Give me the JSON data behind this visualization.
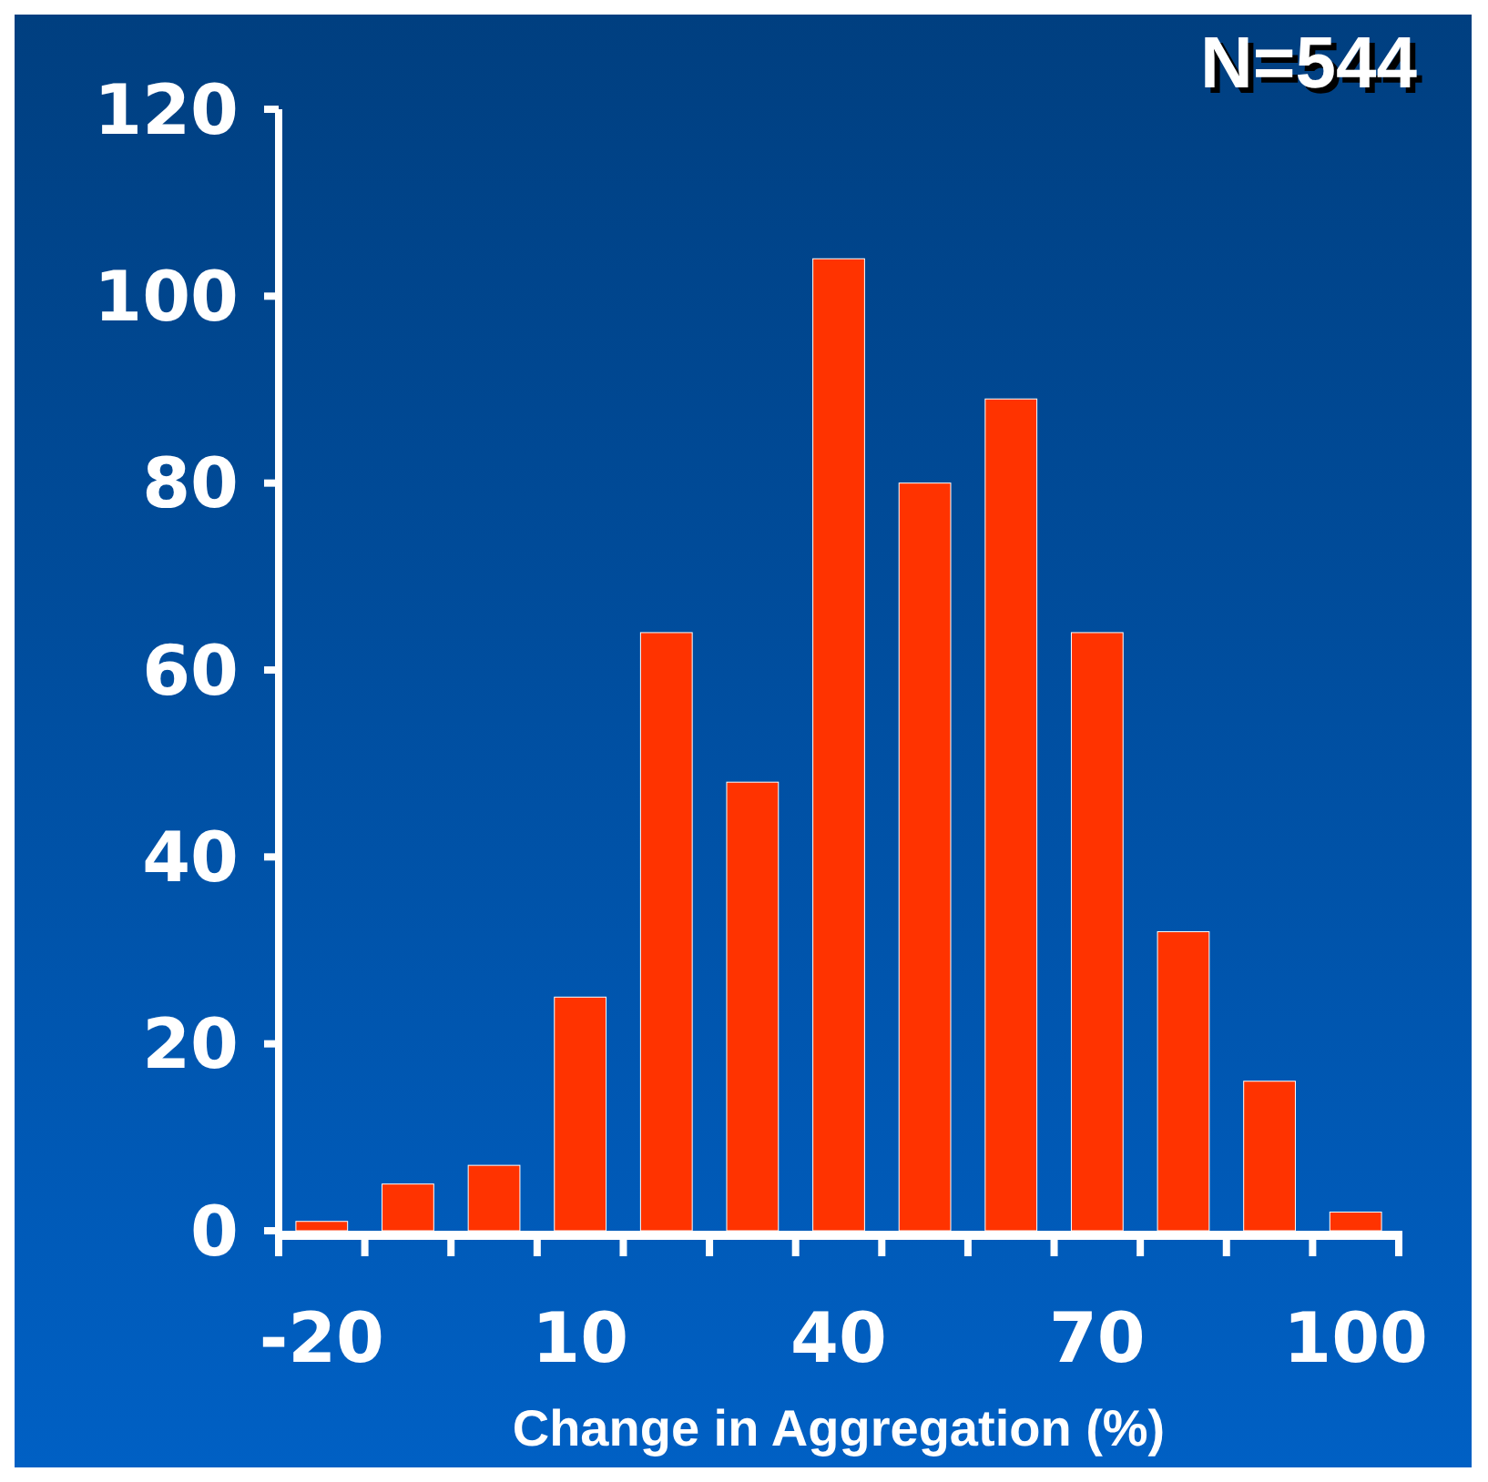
{
  "chart_data": {
    "type": "bar",
    "title": "N=544",
    "xlabel": "Change in Aggregation (%)",
    "categories": [
      "-20",
      null,
      null,
      "10",
      null,
      null,
      "40",
      null,
      null,
      "70",
      null,
      null,
      "100"
    ],
    "values": [
      1,
      5,
      7,
      25,
      64,
      48,
      104,
      80,
      89,
      64,
      32,
      16,
      2
    ],
    "color": "#ff3300",
    "ylim": [
      0,
      120
    ],
    "yticks": [
      0,
      20,
      40,
      60,
      80,
      100,
      120
    ]
  }
}
